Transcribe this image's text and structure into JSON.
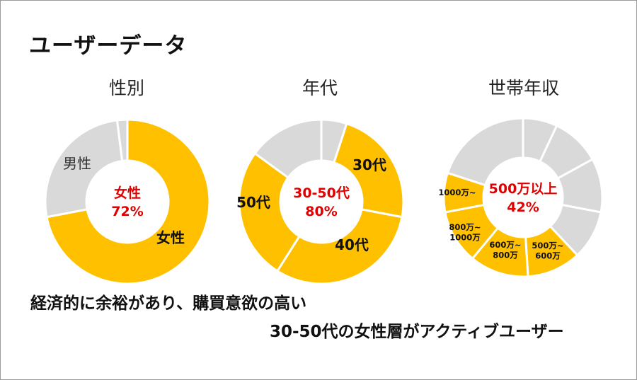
{
  "title": "ユーザーデータ",
  "bottom": {
    "line1": "経済的に余裕があり、購買意欲の高い",
    "line2": "30-50代の女性層がアクティブユーザー"
  },
  "colors": {
    "highlight": "#FFC000",
    "other": "#D9D9D9",
    "accent_text": "#E00000"
  },
  "chart_data": [
    {
      "type": "pie",
      "title": "性別",
      "center_label": [
        "女性",
        "72%"
      ],
      "slices": [
        {
          "label": "女性",
          "value": 72,
          "highlight": true
        },
        {
          "label": "男性",
          "value": 26,
          "highlight": false
        },
        {
          "label": "",
          "value": 2,
          "highlight": false
        }
      ]
    },
    {
      "type": "pie",
      "title": "年代",
      "center_label": [
        "30-50代",
        "80%"
      ],
      "slices": [
        {
          "label": "",
          "value": 5,
          "highlight": false
        },
        {
          "label": "30代",
          "value": 23,
          "highlight": true
        },
        {
          "label": "40代",
          "value": 31,
          "highlight": true
        },
        {
          "label": "50代",
          "value": 26,
          "highlight": true
        },
        {
          "label": "",
          "value": 15,
          "highlight": false
        }
      ]
    },
    {
      "type": "pie",
      "title": "世帯年収",
      "center_label": [
        "500万以上",
        "42%"
      ],
      "slices": [
        {
          "label": "",
          "value": 7,
          "highlight": false
        },
        {
          "label": "",
          "value": 10,
          "highlight": false
        },
        {
          "label": "",
          "value": 11,
          "highlight": false
        },
        {
          "label": "",
          "value": 10,
          "highlight": false
        },
        {
          "label": "500万~600万",
          "value": 11,
          "highlight": true
        },
        {
          "label": "600万~800万",
          "value": 12,
          "highlight": true
        },
        {
          "label": "800万~1000万",
          "value": 11,
          "highlight": true
        },
        {
          "label": "1000万~",
          "value": 8,
          "highlight": true
        },
        {
          "label": "",
          "value": 20,
          "highlight": false
        }
      ]
    }
  ]
}
